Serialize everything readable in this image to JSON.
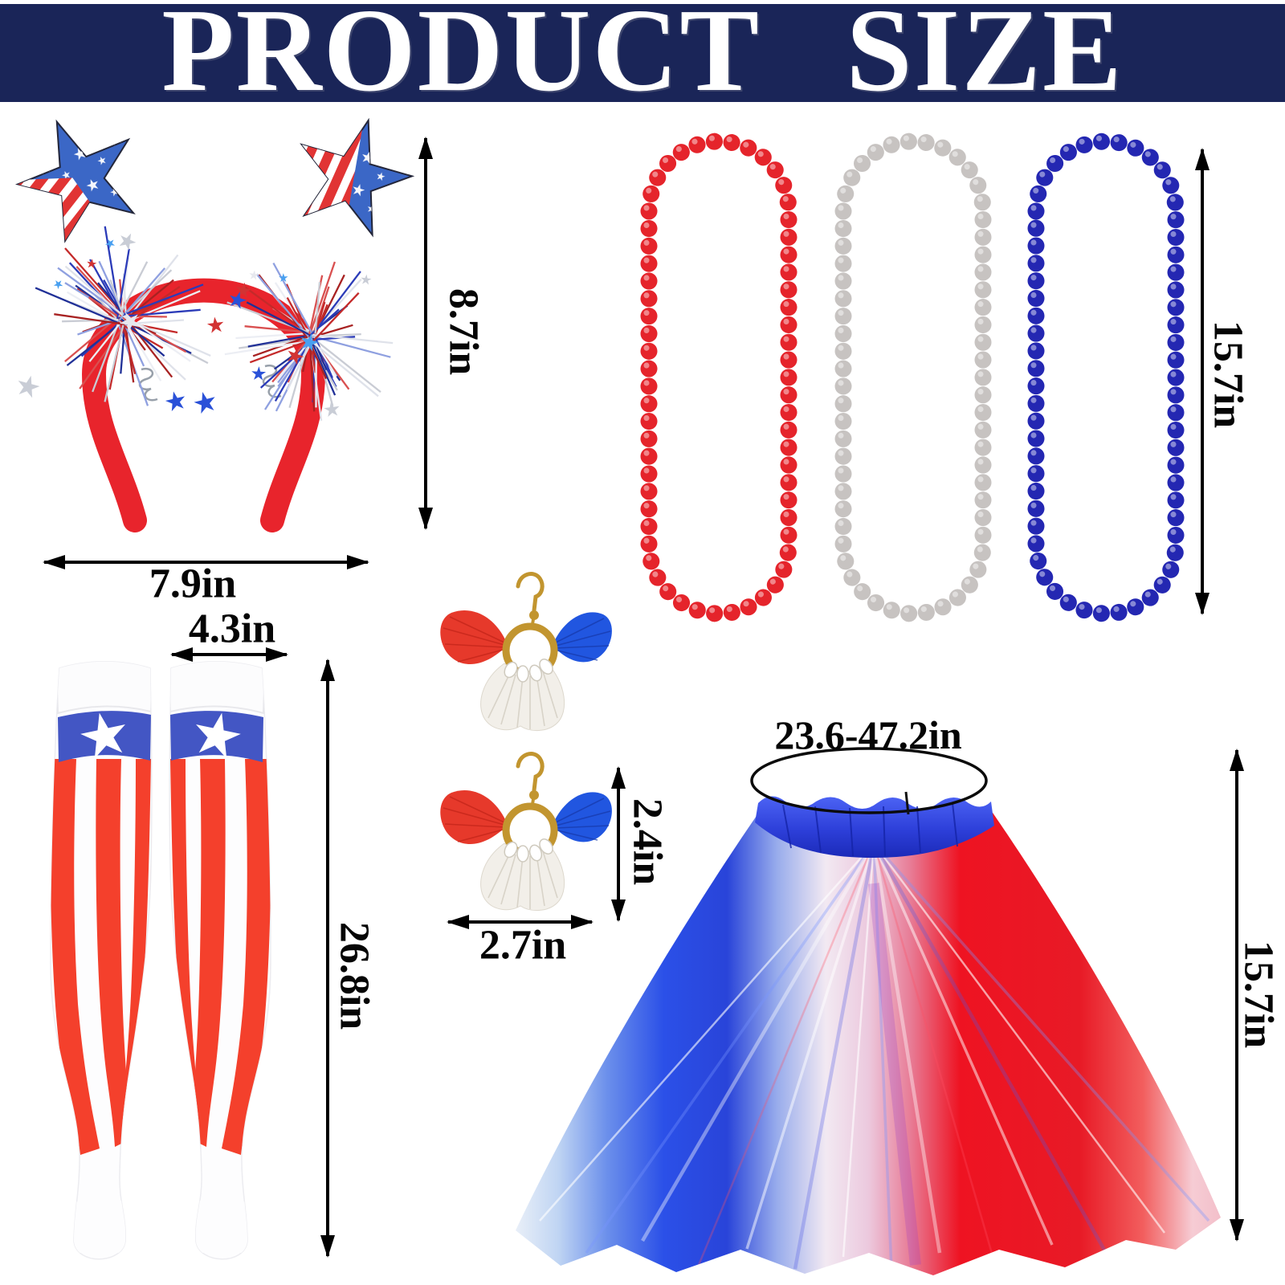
{
  "header": {
    "title": "PRODUCT SIZE",
    "bg_color": "#1a2558",
    "text_color": "#ffffff"
  },
  "products": {
    "headband": {
      "height_label": "8.7in",
      "width_label": "7.9in",
      "band_color": "#e8242c",
      "star_color": "#3b67c6"
    },
    "necklaces": {
      "length_label": "15.7in",
      "bead_colors": [
        "#e5242b",
        "#c7c3c1",
        "#2427b2"
      ]
    },
    "socks": {
      "width_label": "4.3in",
      "length_label": "26.8in",
      "stripe_color": "#f4402c",
      "band_color": "#4356c4"
    },
    "earrings": {
      "height_label": "2.4in",
      "width_label": "2.7in",
      "hook_color": "#c2952f",
      "tassel_red": "#e6392b",
      "tassel_white": "#f2efe9",
      "tassel_blue": "#2156e0"
    },
    "tutu": {
      "waist_label": "23.6-47.2in",
      "length_label": "15.7in",
      "waistband_color": "#2d3fd9",
      "tulle_blue": "#2b50e8",
      "tulle_white": "#f2e9f2",
      "tulle_red": "#ee1322"
    }
  }
}
